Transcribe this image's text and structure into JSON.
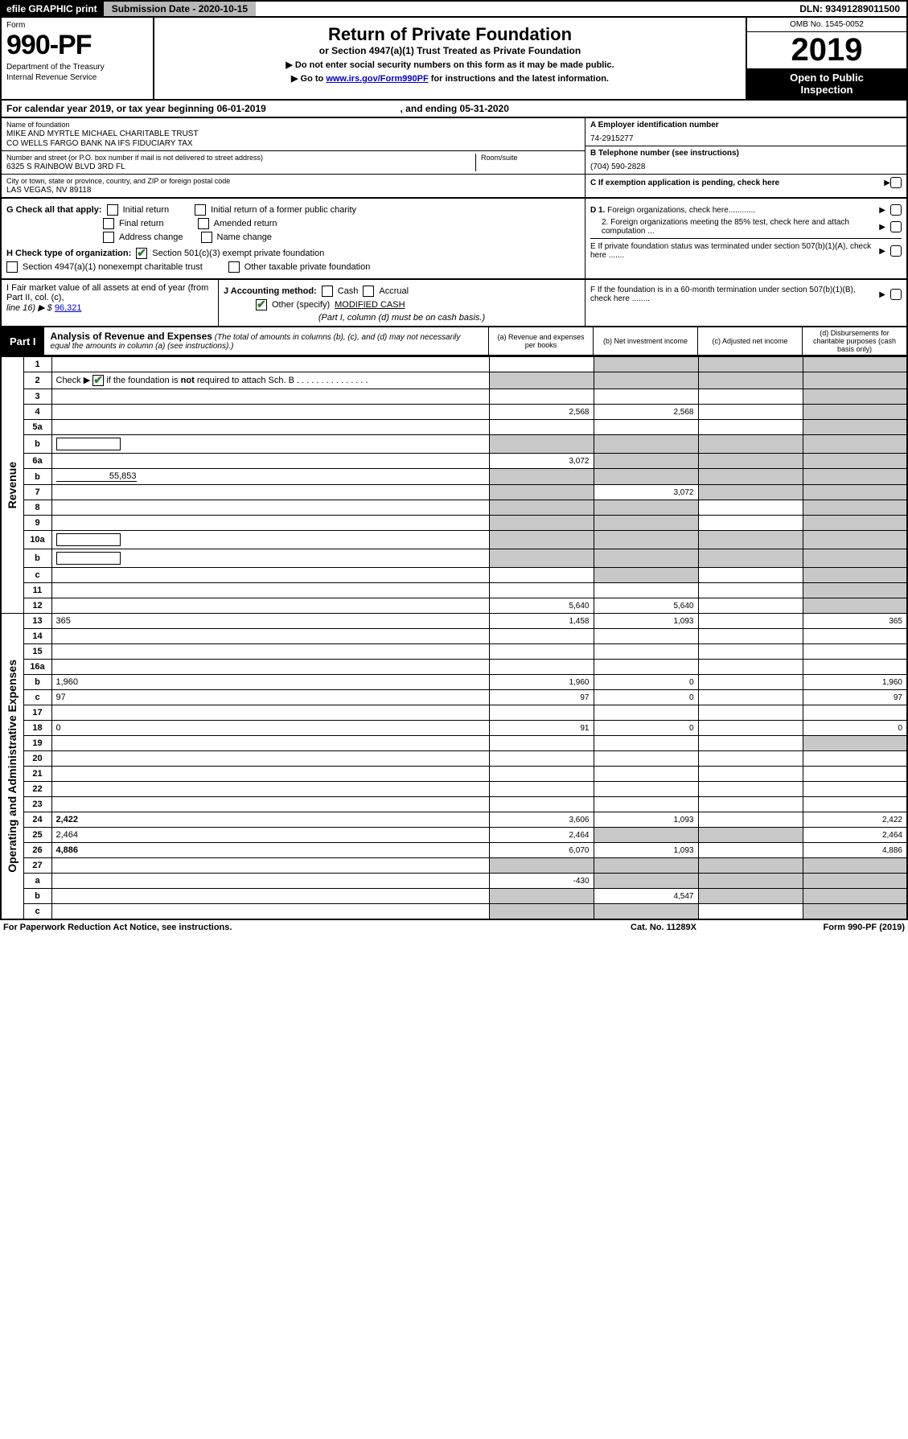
{
  "topbar": {
    "efile": "efile GRAPHIC print",
    "subdate_label": "Submission Date - 2020-10-15",
    "dln": "DLN: 93491289011500"
  },
  "header": {
    "form_label": "Form",
    "form_num": "990-PF",
    "dept1": "Department of the Treasury",
    "dept2": "Internal Revenue Service",
    "title": "Return of Private Foundation",
    "subtitle": "or Section 4947(a)(1) Trust Treated as Private Foundation",
    "note1": "▶ Do not enter social security numbers on this form as it may be made public.",
    "note2_prefix": "▶ Go to ",
    "note2_link": "www.irs.gov/Form990PF",
    "note2_suffix": " for instructions and the latest information.",
    "omb": "OMB No. 1545-0052",
    "year": "2019",
    "inspect1": "Open to Public",
    "inspect2": "Inspection"
  },
  "calyear": {
    "text_a": "For calendar year 2019, or tax year beginning 06-01-2019",
    "text_b": ", and ending 05-31-2020"
  },
  "entity": {
    "name_label": "Name of foundation",
    "name1": "MIKE AND MYRTLE MICHAEL CHARITABLE TRUST",
    "name2": "CO WELLS FARGO BANK NA IFS FIDUCIARY TAX",
    "addr_label": "Number and street (or P.O. box number if mail is not delivered to street address)",
    "addr": "6325 S RAINBOW BLVD 3RD FL",
    "room_label": "Room/suite",
    "city_label": "City or town, state or province, country, and ZIP or foreign postal code",
    "city": "LAS VEGAS, NV  89118",
    "a_label": "A Employer identification number",
    "a_val": "74-2915277",
    "b_label": "B Telephone number (see instructions)",
    "b_val": "(704) 590-2828",
    "c_label": "C If exemption application is pending, check here"
  },
  "checks": {
    "g_label": "G Check all that apply:",
    "g_opts": [
      "Initial return",
      "Initial return of a former public charity",
      "Final return",
      "Amended return",
      "Address change",
      "Name change"
    ],
    "h_label": "H Check type of organization:",
    "h1": "Section 501(c)(3) exempt private foundation",
    "h2": "Section 4947(a)(1) nonexempt charitable trust",
    "h3": "Other taxable private foundation",
    "d1": "D 1. Foreign organizations, check here............",
    "d2": "2. Foreign organizations meeting the 85% test, check here and attach computation ...",
    "e": "E  If private foundation status was terminated under section 507(b)(1)(A), check here .......",
    "f": "F  If the foundation is in a 60-month termination under section 507(b)(1)(B), check here ........"
  },
  "ij": {
    "i_label": "I Fair market value of all assets at end of year (from Part II, col. (c),",
    "i_line": "line 16) ▶ $",
    "i_val": "96,321",
    "j_label": "J Accounting method:",
    "j_cash": "Cash",
    "j_accrual": "Accrual",
    "j_other": "Other (specify)",
    "j_other_val": "MODIFIED CASH",
    "j_note": "(Part I, column (d) must be on cash basis.)"
  },
  "part1": {
    "label": "Part I",
    "title": "Analysis of Revenue and Expenses",
    "title_note": "(The total of amounts in columns (b), (c), and (d) may not necessarily equal the amounts in column (a) (see instructions).)",
    "col_a": "(a)    Revenue and expenses per books",
    "col_b": "(b)   Net investment income",
    "col_c": "(c)   Adjusted net income",
    "col_d": "(d)   Disbursements for charitable purposes (cash basis only)"
  },
  "side_labels": {
    "revenue": "Revenue",
    "expenses": "Operating and Administrative Expenses"
  },
  "rows": [
    {
      "n": "1",
      "d": "",
      "a": "",
      "b": "",
      "c": "",
      "shade_b": true,
      "shade_c": true,
      "shade_d": true
    },
    {
      "n": "2",
      "d": "",
      "a": "",
      "b": "",
      "c": "",
      "shade_a": true,
      "shade_b": true,
      "shade_c": true,
      "shade_d": true,
      "checkbox": true
    },
    {
      "n": "3",
      "d": "",
      "a": "",
      "b": "",
      "c": "",
      "shade_d": true
    },
    {
      "n": "4",
      "d": "",
      "a": "2,568",
      "b": "2,568",
      "c": "",
      "shade_d": true
    },
    {
      "n": "5a",
      "d": "",
      "a": "",
      "b": "",
      "c": "",
      "shade_d": true
    },
    {
      "n": "b",
      "d": "",
      "a": "",
      "b": "",
      "c": "",
      "inline_box": true,
      "shade_a": true,
      "shade_b": true,
      "shade_c": true,
      "shade_d": true
    },
    {
      "n": "6a",
      "d": "",
      "a": "3,072",
      "b": "",
      "c": "",
      "shade_b": true,
      "shade_c": true,
      "shade_d": true
    },
    {
      "n": "b",
      "d": "",
      "a": "",
      "b": "",
      "c": "",
      "inline_val": "55,853",
      "shade_a": true,
      "shade_b": true,
      "shade_c": true,
      "shade_d": true
    },
    {
      "n": "7",
      "d": "",
      "a": "",
      "b": "3,072",
      "c": "",
      "shade_a": true,
      "shade_c": true,
      "shade_d": true
    },
    {
      "n": "8",
      "d": "",
      "a": "",
      "b": "",
      "c": "",
      "shade_a": true,
      "shade_b": true,
      "shade_d": true
    },
    {
      "n": "9",
      "d": "",
      "a": "",
      "b": "",
      "c": "",
      "shade_a": true,
      "shade_b": true,
      "shade_d": true
    },
    {
      "n": "10a",
      "d": "",
      "a": "",
      "b": "",
      "c": "",
      "inline_box": true,
      "shade_a": true,
      "shade_b": true,
      "shade_c": true,
      "shade_d": true
    },
    {
      "n": "b",
      "d": "",
      "a": "",
      "b": "",
      "c": "",
      "inline_box": true,
      "shade_a": true,
      "shade_b": true,
      "shade_c": true,
      "shade_d": true
    },
    {
      "n": "c",
      "d": "",
      "a": "",
      "b": "",
      "c": "",
      "shade_b": true,
      "shade_d": true
    },
    {
      "n": "11",
      "d": "",
      "a": "",
      "b": "",
      "c": "",
      "shade_d": true
    },
    {
      "n": "12",
      "d": "",
      "a": "5,640",
      "b": "5,640",
      "c": "",
      "bold": true,
      "shade_d": true
    },
    {
      "n": "13",
      "d": "365",
      "a": "1,458",
      "b": "1,093",
      "c": ""
    },
    {
      "n": "14",
      "d": "",
      "a": "",
      "b": "",
      "c": ""
    },
    {
      "n": "15",
      "d": "",
      "a": "",
      "b": "",
      "c": ""
    },
    {
      "n": "16a",
      "d": "",
      "a": "",
      "b": "",
      "c": ""
    },
    {
      "n": "b",
      "d": "1,960",
      "a": "1,960",
      "b": "0",
      "c": ""
    },
    {
      "n": "c",
      "d": "97",
      "a": "97",
      "b": "0",
      "c": ""
    },
    {
      "n": "17",
      "d": "",
      "a": "",
      "b": "",
      "c": ""
    },
    {
      "n": "18",
      "d": "0",
      "a": "91",
      "b": "0",
      "c": ""
    },
    {
      "n": "19",
      "d": "",
      "a": "",
      "b": "",
      "c": "",
      "shade_d": true
    },
    {
      "n": "20",
      "d": "",
      "a": "",
      "b": "",
      "c": ""
    },
    {
      "n": "21",
      "d": "",
      "a": "",
      "b": "",
      "c": ""
    },
    {
      "n": "22",
      "d": "",
      "a": "",
      "b": "",
      "c": ""
    },
    {
      "n": "23",
      "d": "",
      "a": "",
      "b": "",
      "c": ""
    },
    {
      "n": "24",
      "d": "2,422",
      "a": "3,606",
      "b": "1,093",
      "c": "",
      "bold": true
    },
    {
      "n": "25",
      "d": "2,464",
      "a": "2,464",
      "b": "",
      "c": "",
      "shade_b": true,
      "shade_c": true
    },
    {
      "n": "26",
      "d": "4,886",
      "a": "6,070",
      "b": "1,093",
      "c": "",
      "bold": true
    },
    {
      "n": "27",
      "d": "",
      "a": "",
      "b": "",
      "c": "",
      "shade_a": true,
      "shade_b": true,
      "shade_c": true,
      "shade_d": true
    },
    {
      "n": "a",
      "d": "",
      "a": "-430",
      "b": "",
      "c": "",
      "bold": true,
      "shade_b": true,
      "shade_c": true,
      "shade_d": true
    },
    {
      "n": "b",
      "d": "",
      "a": "",
      "b": "4,547",
      "c": "",
      "bold": true,
      "shade_a": true,
      "shade_c": true,
      "shade_d": true
    },
    {
      "n": "c",
      "d": "",
      "a": "",
      "b": "",
      "c": "",
      "bold": true,
      "shade_a": true,
      "shade_b": true,
      "shade_d": true
    }
  ],
  "footer": {
    "left": "For Paperwork Reduction Act Notice, see instructions.",
    "mid": "Cat. No. 11289X",
    "right": "Form 990-PF (2019)"
  },
  "colors": {
    "black": "#000000",
    "grey_bar": "#b8b8b8",
    "shade": "#c8c8c8",
    "check_green": "#2a7a2a",
    "link_blue": "#0000cc"
  }
}
